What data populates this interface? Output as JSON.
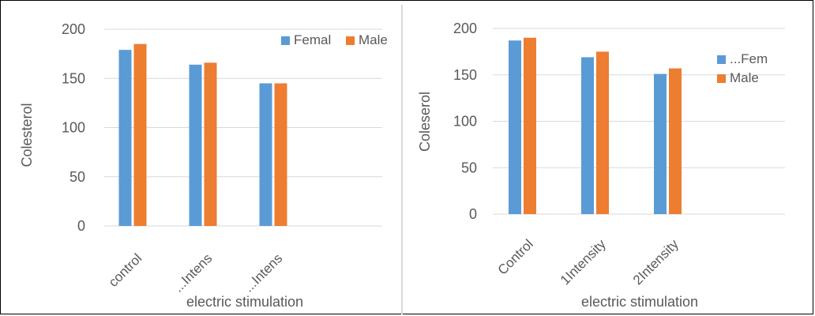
{
  "colors": {
    "series1": "#5b9bd5",
    "series2": "#ed7d31",
    "grid": "#d9d9d9",
    "axis_text": "#595959"
  },
  "chart_data": [
    {
      "type": "bar",
      "title": "",
      "categories": [
        "control",
        "...Intens",
        "...Intens"
      ],
      "series": [
        {
          "name": "Femal",
          "values": [
            179,
            164,
            145
          ]
        },
        {
          "name": "Male",
          "values": [
            185,
            166,
            145
          ]
        }
      ],
      "xlabel": "electric stimulation",
      "ylabel": "Colesterol",
      "ylim": [
        0,
        200
      ],
      "yticks": [
        "0",
        "50",
        "100",
        "150",
        "200"
      ],
      "grid": true,
      "legend_position": "top-right"
    },
    {
      "type": "bar",
      "title": "",
      "categories": [
        "Control",
        "1Intensity",
        "2Intensity"
      ],
      "series": [
        {
          "name": "...Fem",
          "values": [
            187,
            169,
            151
          ]
        },
        {
          "name": "Male",
          "values": [
            190,
            175,
            157
          ]
        }
      ],
      "xlabel": "electric stimulation",
      "ylabel": "Coleserol",
      "ylim": [
        0,
        200
      ],
      "yticks": [
        "0",
        "50",
        "100",
        "150",
        "200"
      ],
      "grid": true,
      "legend_position": "right"
    }
  ]
}
